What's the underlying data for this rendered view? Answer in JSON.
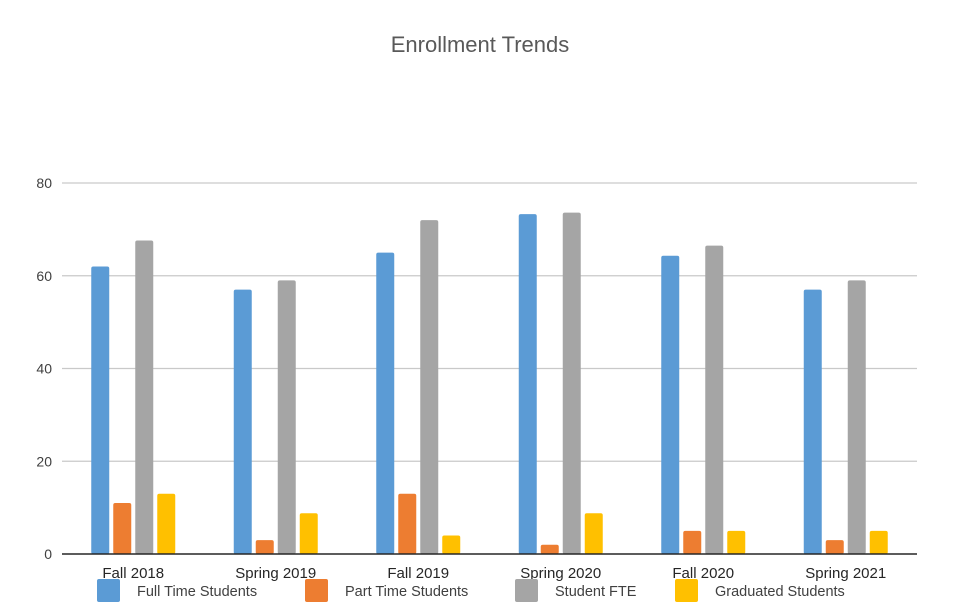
{
  "chart_data": {
    "type": "bar",
    "title": "Enrollment Trends",
    "xlabel": "",
    "ylabel": "",
    "categories": [
      "Fall 2018",
      "Spring 2019",
      "Fall 2019",
      "Spring 2020",
      "Fall 2020",
      "Spring 2021"
    ],
    "series": [
      {
        "name": "Full Time Students",
        "color": "#5B9BD5",
        "values": [
          62,
          57,
          65,
          73.3,
          64.3,
          57
        ]
      },
      {
        "name": "Part Time Students",
        "color": "#ED7D31",
        "values": [
          11,
          3,
          13,
          2,
          5,
          3
        ]
      },
      {
        "name": "Student FTE",
        "color": "#A5A5A5",
        "values": [
          67.6,
          59,
          72,
          73.6,
          66.5,
          59
        ]
      },
      {
        "name": "Graduated Students",
        "color": "#FFC000",
        "values": [
          13,
          8.8,
          4,
          8.8,
          5,
          5
        ]
      }
    ],
    "ylim": [
      0,
      80
    ],
    "yticks": [
      0,
      20,
      40,
      60,
      80
    ],
    "grid": true,
    "legend_position": "bottom"
  }
}
